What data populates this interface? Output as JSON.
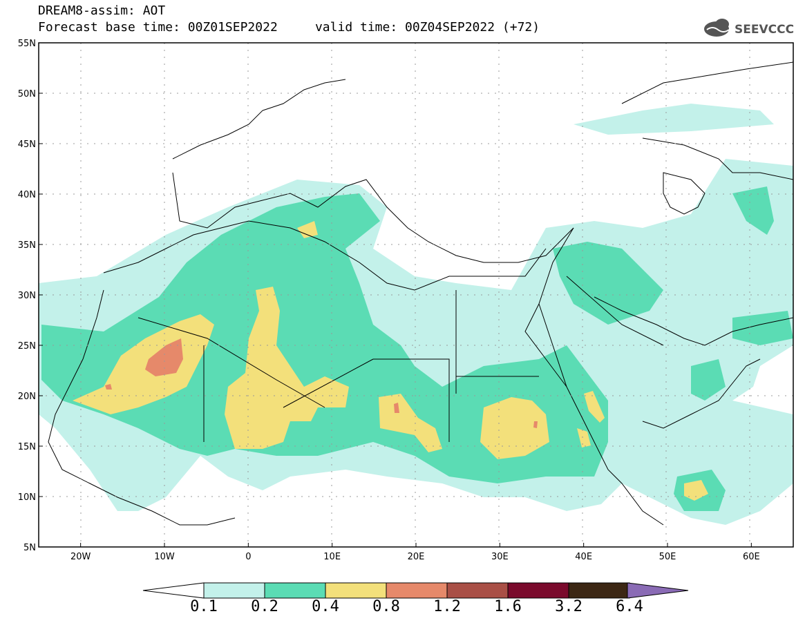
{
  "header": {
    "title": "DREAM8-assim: AOT",
    "subtitle": "Forecast base time: 00Z01SEP2022     valid time: 00Z04SEP2022 (+72)"
  },
  "logo": {
    "text": "SEEVCCC",
    "icon": "cloud-logo-icon"
  },
  "map": {
    "type": "filled-contour-map",
    "variable": "AOT",
    "projection": "lat-lon",
    "lon_range": [
      -25,
      65
    ],
    "lat_range": [
      5,
      55
    ],
    "grid": "dotted",
    "lat_ticks": [
      "5N",
      "10N",
      "15N",
      "20N",
      "25N",
      "30N",
      "35N",
      "40N",
      "45N",
      "50N",
      "55N"
    ],
    "lon_ticks": [
      "20W",
      "10W",
      "0",
      "10E",
      "20E",
      "30E",
      "40E",
      "50E",
      "60E"
    ]
  },
  "colorbar": {
    "levels": [
      "0.1",
      "0.2",
      "0.4",
      "0.8",
      "1.2",
      "1.6",
      "3.2",
      "6.4"
    ],
    "colors": [
      "#c3f1ea",
      "#5bdcb4",
      "#f3e07b",
      "#e6896a",
      "#a94f46",
      "#7a0a2c",
      "#3c2714",
      "#8a6bb5"
    ],
    "below_color": "#ffffff"
  }
}
